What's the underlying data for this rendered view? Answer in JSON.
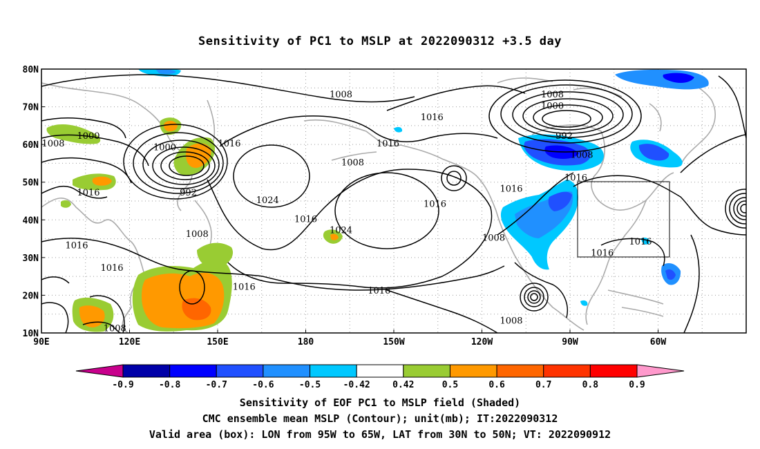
{
  "title": "Sensitivity of PC1 to MSLP at 2022090312 +3.5 day",
  "map": {
    "lat_labels": [
      "80N",
      "70N",
      "60N",
      "50N",
      "40N",
      "30N",
      "20N",
      "10N"
    ],
    "lon_labels": [
      "90E",
      "120E",
      "150E",
      "180",
      "150W",
      "120W",
      "90W",
      "60W"
    ],
    "box": {
      "lon_from": "95W",
      "lon_to": "65W",
      "lat_from": "30N",
      "lat_to": "50N"
    }
  },
  "contour_labels": [
    {
      "text": "1008",
      "lon": -168,
      "lat": 73
    },
    {
      "text": "1016",
      "lon": -137,
      "lat": 67
    },
    {
      "text": "1000",
      "lon": 106,
      "lat": 62
    },
    {
      "text": "1008",
      "lon": 94,
      "lat": 60
    },
    {
      "text": "1000",
      "lon": 132,
      "lat": 59
    },
    {
      "text": "1016",
      "lon": 154,
      "lat": 60
    },
    {
      "text": "992",
      "lon": 140,
      "lat": 47
    },
    {
      "text": "1008",
      "lon": 143,
      "lat": 36
    },
    {
      "text": "1016",
      "lon": 106,
      "lat": 47
    },
    {
      "text": "1024",
      "lon": 167,
      "lat": 45
    },
    {
      "text": "1008",
      "lon": -164,
      "lat": 55
    },
    {
      "text": "1016",
      "lon": -152,
      "lat": 60
    },
    {
      "text": "1016",
      "lon": -180,
      "lat": 40
    },
    {
      "text": "1024",
      "lon": -168,
      "lat": 37
    },
    {
      "text": "1016",
      "lon": -136,
      "lat": 44
    },
    {
      "text": "1016",
      "lon": -110,
      "lat": 48
    },
    {
      "text": "1008",
      "lon": -116,
      "lat": 35
    },
    {
      "text": "1008",
      "lon": -96,
      "lat": 73
    },
    {
      "text": "1000",
      "lon": -96,
      "lat": 70
    },
    {
      "text": "992",
      "lon": -92,
      "lat": 62
    },
    {
      "text": "1008",
      "lon": -86,
      "lat": 57
    },
    {
      "text": "1016",
      "lon": -88,
      "lat": 51
    },
    {
      "text": "1016",
      "lon": -79,
      "lat": 31
    },
    {
      "text": "1016",
      "lon": -66,
      "lat": 34
    },
    {
      "text": "1016",
      "lon": 102,
      "lat": 33
    },
    {
      "text": "1016",
      "lon": 114,
      "lat": 27
    },
    {
      "text": "1016",
      "lon": 159,
      "lat": 22
    },
    {
      "text": "1016",
      "lon": -155,
      "lat": 21
    },
    {
      "text": "1008",
      "lon": 115,
      "lat": 11
    },
    {
      "text": "1008",
      "lon": -110,
      "lat": 13
    }
  ],
  "colorbar": {
    "labels": [
      "-0.9",
      "-0.8",
      "-0.7",
      "-0.6",
      "-0.5",
      "-0.42",
      "0.42",
      "0.5",
      "0.6",
      "0.7",
      "0.8",
      "0.9"
    ],
    "colors": [
      "#0000a8",
      "#0000ff",
      "#2050ff",
      "#2090ff",
      "#00c8ff",
      "#ffffff",
      "#99cc33",
      "#ff9900",
      "#ff6600",
      "#ff3300",
      "#ff0000"
    ],
    "low_end_color": "#c8008c",
    "high_end_color": "#ff99cc"
  },
  "captions": [
    "Sensitivity of EOF PC1 to MSLP field (Shaded)",
    "CMC ensemble mean MSLP (Contour); unit(mb); IT:2022090312",
    "Valid area (box): LON from 95W to 65W, LAT from 30N to 50N; VT: 2022090912"
  ]
}
